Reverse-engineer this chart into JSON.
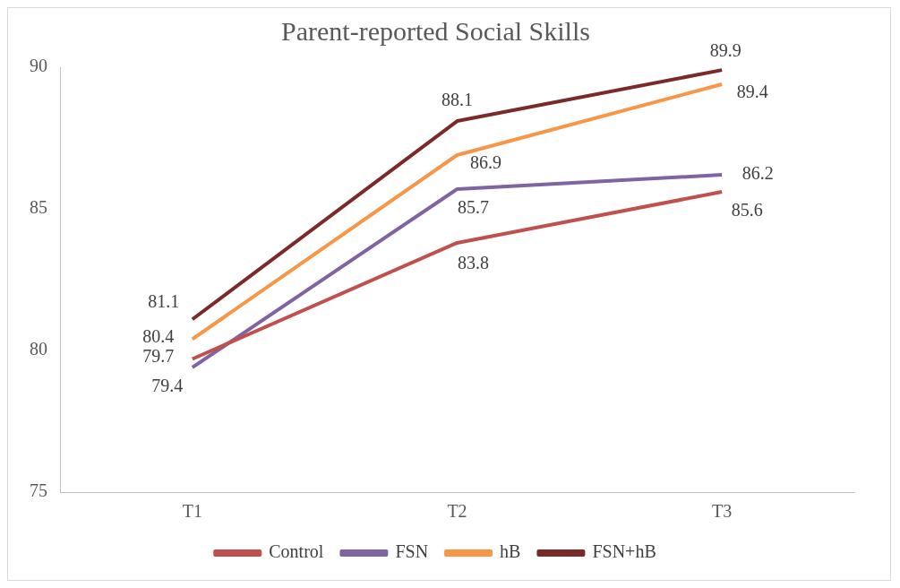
{
  "chart_data": {
    "type": "line",
    "title": "Parent-reported Social Skills",
    "categories": [
      "T1",
      "T2",
      "T3"
    ],
    "series": [
      {
        "name": "Control",
        "color": "#c0504d",
        "values": [
          79.7,
          83.8,
          85.6
        ]
      },
      {
        "name": "FSN",
        "color": "#8064a2",
        "values": [
          79.4,
          85.7,
          86.2
        ]
      },
      {
        "name": "hB",
        "color": "#f79646",
        "values": [
          80.4,
          86.9,
          89.4
        ]
      },
      {
        "name": "FSN+hB",
        "color": "#7b2a2a",
        "values": [
          81.1,
          88.1,
          89.9
        ]
      }
    ],
    "ylim": [
      75,
      90
    ],
    "yticks": [
      75,
      80,
      85,
      90
    ],
    "grid": false,
    "legend": "bottom",
    "data_labels": true,
    "marker": "none",
    "line_style": "solid"
  }
}
